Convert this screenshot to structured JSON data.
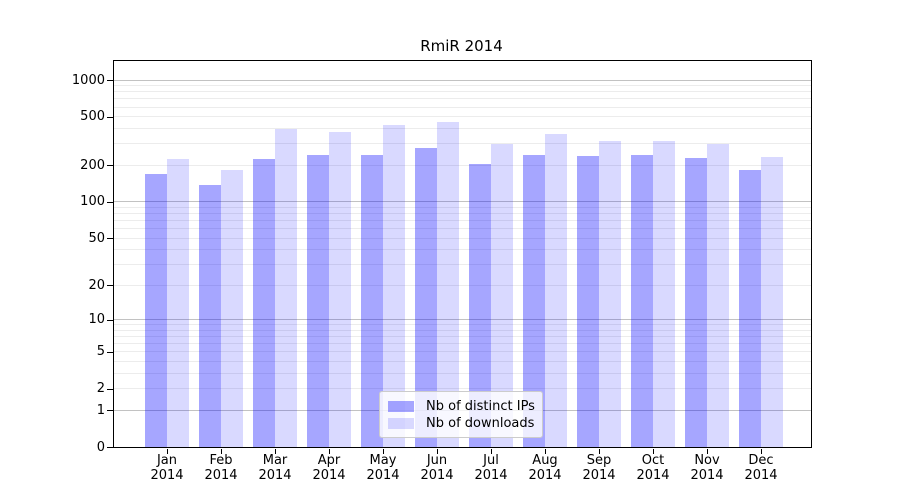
{
  "chart_data": {
    "type": "bar",
    "title": "RmiR 2014",
    "categories": [
      "Jan",
      "Feb",
      "Mar",
      "Apr",
      "May",
      "Jun",
      "Jul",
      "Aug",
      "Sep",
      "Oct",
      "Nov",
      "Dec"
    ],
    "category_year": "2014",
    "series": [
      {
        "name": "Nb of distinct IPs",
        "color": "#0000ff59",
        "values": [
          170,
          138,
          225,
          245,
          245,
          280,
          205,
          245,
          240,
          245,
          230,
          183
        ]
      },
      {
        "name": "Nb of downloads",
        "color": "#0000ff26",
        "values": [
          225,
          182,
          395,
          375,
          430,
          455,
          300,
          360,
          315,
          315,
          300,
          235
        ]
      }
    ],
    "xlabel": "",
    "ylabel": "",
    "yscale": "log1p",
    "ylim": [
      0,
      1430
    ],
    "yticks": [
      0,
      1,
      2,
      5,
      10,
      20,
      50,
      100,
      200,
      500,
      1000
    ],
    "grid": {
      "horizontal": true,
      "vertical": false,
      "minor": true
    },
    "legend": {
      "position": "inside-lower-center"
    },
    "colors": {
      "major_grid": "#c2c2c2",
      "minor_grid": "#ececec",
      "spine": "#000000",
      "text": "#000000",
      "background": "#ffffff"
    }
  }
}
